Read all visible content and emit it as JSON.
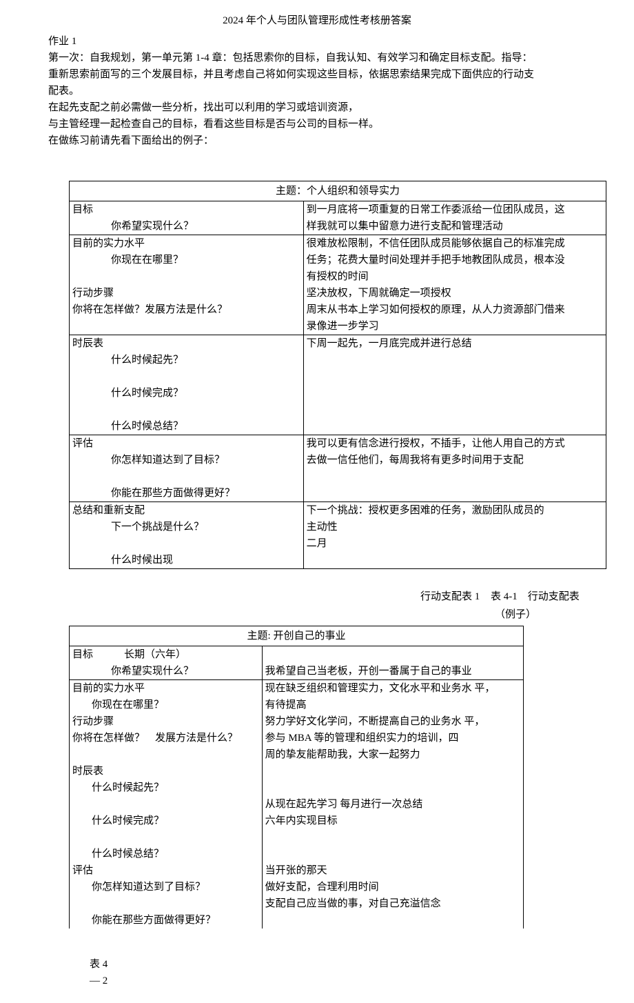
{
  "title": "2024 年个人与团队管理形成性考核册答案",
  "intro": {
    "l1": "作业 1",
    "l2": "第一次：自我规划，第一单元第 1-4 章：包括思索你的目标，自我认知、有效学习和确定目标支配。指导：",
    "l3": "重新思索前面写的三个发展目标，并且考虑自己将如何实现这些目标，依据思索结果完成下面供应的行动支",
    "l4": "配表。",
    "l5": "在起先支配之前必需做一些分析，找出可以利用的学习或培训资源，",
    "l6": "与主管经理一起检查自己的目标，看看这些目标是否与公司的目标一样。",
    "l7": "在做练习前请先看下面给出的例子："
  },
  "table1": {
    "header": "主题：个人组织和领导实力",
    "r1c1a": "目标",
    "r1c1b": "你希望实现什么？",
    "r1c2a": "到一月底将一项重复的日常工作委派给一位团队成员，这",
    "r1c2b": "样我就可以集中留意力进行支配和管理活动",
    "r2c1a": "目前的实力水平",
    "r2c1b": "你现在在哪里？",
    "r2c2a": "很难放松限制，不信任团队成员能够依据自己的标准完成",
    "r2c2b": "任务；花费大量时间处理并手把手地教团队成员，根本没",
    "r2c2c": "有授权的时间",
    "r3c1a": "行动步骤",
    "r3c1b": "你将在怎样做？发展方法是什么？",
    "r3c2a": "坚决放权，下周就确定一项授权",
    "r3c2b": "周末从书本上学习如何授权的原理，从人力资源部门借来",
    "r3c2c": "录像进一步学习",
    "r4c1a": "时辰表",
    "r4c1b": "什么时候起先？",
    "r4c1c": "什么时候完成？",
    "r4c1d": "什么时候总结？",
    "r4c2a": "下周一起先，一月底完成并进行总结",
    "r5c1a": "评估",
    "r5c1b": "你怎样知道达到了目标？",
    "r5c1c": "你能在那些方面做得更好？",
    "r5c2a": "我可以更有信念进行授权，不插手，让他人用自己的方式",
    "r5c2b": "去做一信任他们，每周我将有更多时间用于支配",
    "r6c1a": "总结和重新支配",
    "r6c1b": "下一个挑战是什么？",
    "r6c1c": "什么时候出现",
    "r6c2a": "下一个挑战：授权更多困难的任务，激励团队成员的",
    "r6c2b": "主动性",
    "r6c2c": "二月"
  },
  "midlabels": {
    "left": "行动支配表 1",
    "right": "表 4-1　行动支配表",
    "example": "（例子）"
  },
  "table2": {
    "header": "主题: 开创自己的事业",
    "r1c1a": "目标　　　长期（六年）",
    "r1c1b": "你希望实现什么？",
    "r1c2b": "我希望自己当老板，开创一番属于自己的事业",
    "r2c1a": "目前的实力水平",
    "r2c1b": "你现在在哪里？",
    "r2c2a": "现在缺乏组织和管理实力，文化水平和业务水 平，",
    "r2c2b": "有待提高",
    "r3c1a": "行动步骤",
    "r3c1b": "你将在怎样做？　发展方法是什么？",
    "r3c2a": "努力学好文化学问，不断提高自己的业务水 平，",
    "r3c2b": "参与 MBA 等的管理和组织实力的培训，四",
    "r3c2c": "周的挚友能帮助我，大家一起努力",
    "r4c1a": "时辰表",
    "r4c1b": "什么时候起先？",
    "r4c1c": "什么时候完成？",
    "r4c1d": "什么时候总结？",
    "r4c2c": "从现在起先学习  每月进行一次总结",
    "r4c2d": "六年内实现目标",
    "r5c1a": "评估",
    "r5c1b": "你怎样知道达到了目标？",
    "r5c1c": "你能在那些方面做得更好？",
    "r5c2h": "当开张的那天",
    "r5c2a": "做好支配，合理利用时间",
    "r5c2b": "支配自己应当做的事，对自己充溢信念"
  },
  "footer": {
    "a": "表 4",
    "b": "— 2"
  }
}
